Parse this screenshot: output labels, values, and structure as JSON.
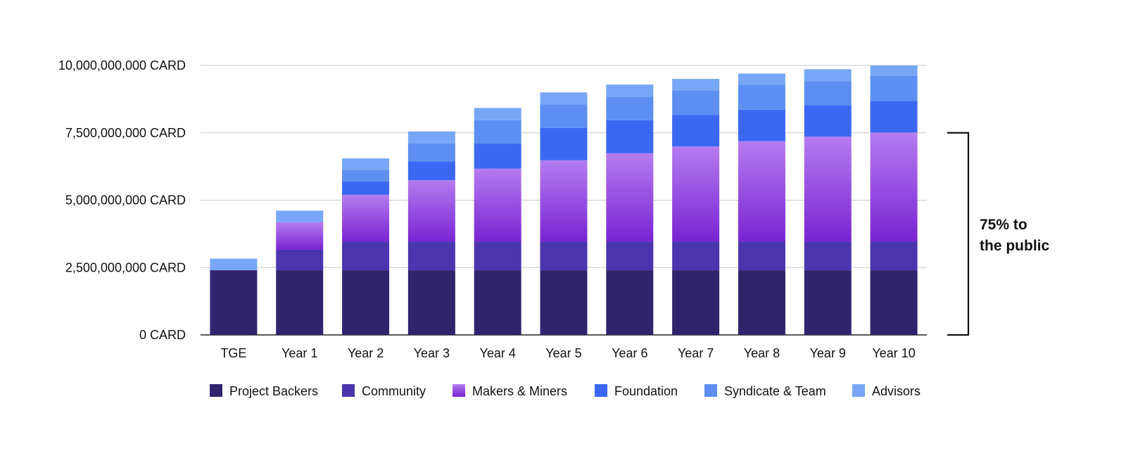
{
  "chart_data": {
    "type": "bar",
    "stacked": true,
    "title": "",
    "xlabel": "",
    "ylabel": "",
    "ylim": [
      0,
      10000000000
    ],
    "unit": "CARD",
    "yticks": [
      "0 CARD",
      "2,500,000,000 CARD",
      "5,000,000,000 CARD",
      "7,500,000,000 CARD",
      "10,000,000,000 CARD"
    ],
    "ytick_values": [
      0,
      2500000000,
      5000000000,
      7500000000,
      10000000000
    ],
    "grid": true,
    "legend_position": "bottom",
    "categories": [
      "TGE",
      "Year 1",
      "Year 2",
      "Year 3",
      "Year 4",
      "Year 5",
      "Year 6",
      "Year 7",
      "Year 8",
      "Year 9",
      "Year 10"
    ],
    "series": [
      {
        "name": "Project Backers",
        "color": "#30246c",
        "gradient_end": "#30246c",
        "values": [
          2400000000,
          2400000000,
          2400000000,
          2400000000,
          2400000000,
          2400000000,
          2400000000,
          2400000000,
          2400000000,
          2400000000,
          2400000000
        ]
      },
      {
        "name": "Community",
        "color": "#4c34ae",
        "gradient_end": "#4c34ae",
        "values": [
          0,
          770000000,
          1070000000,
          1070000000,
          1070000000,
          1070000000,
          1070000000,
          1070000000,
          1070000000,
          1070000000,
          1070000000
        ]
      },
      {
        "name": "Makers & Miners",
        "color": "#b57cf0",
        "gradient_end": "#7824d2",
        "values": [
          0,
          1010000000,
          1730000000,
          2270000000,
          2700000000,
          3010000000,
          3270000000,
          3520000000,
          3720000000,
          3890000000,
          4040000000
        ]
      },
      {
        "name": "Foundation",
        "color": "#3b68f3",
        "gradient_end": "#3b68f3",
        "values": [
          0,
          0,
          500000000,
          700000000,
          930000000,
          1200000000,
          1230000000,
          1170000000,
          1170000000,
          1170000000,
          1170000000
        ]
      },
      {
        "name": "Syndicate & Team",
        "color": "#5d8ff2",
        "gradient_end": "#5d8ff2",
        "values": [
          0,
          0,
          430000000,
          670000000,
          870000000,
          870000000,
          870000000,
          920000000,
          920000000,
          880000000,
          930000000
        ]
      },
      {
        "name": "Advisors",
        "color": "#78a6f7",
        "gradient_end": "#78a6f7",
        "values": [
          430000000,
          430000000,
          420000000,
          440000000,
          450000000,
          450000000,
          450000000,
          420000000,
          420000000,
          450000000,
          390000000
        ]
      }
    ],
    "annotation": {
      "line1": "75% to",
      "line2": "the public",
      "range": [
        0,
        7500000000
      ]
    }
  }
}
